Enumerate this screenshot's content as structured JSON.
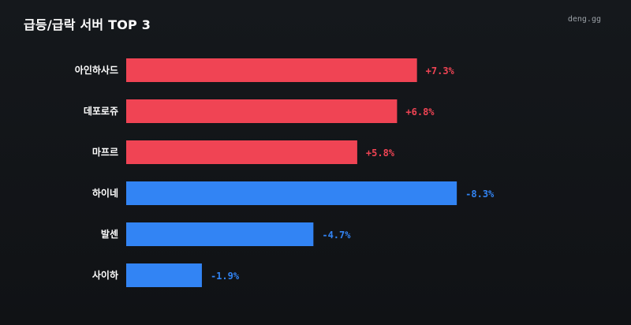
{
  "header": {
    "title": "급등/급락 서버 TOP 3",
    "brand": "deng.gg"
  },
  "colors": {
    "up": "#f04454",
    "down": "#3284f4",
    "background": "#121418"
  },
  "chart_data": {
    "type": "bar",
    "orientation": "horizontal",
    "title": "급등/급락 서버 TOP 3",
    "grid": false,
    "categories": [
      "아인하사드",
      "데포로쥬",
      "마프르",
      "하이네",
      "발센",
      "사이하"
    ],
    "values": [
      7.3,
      6.8,
      5.8,
      -8.3,
      -4.7,
      -1.9
    ],
    "value_labels": [
      "+7.3%",
      "+6.8%",
      "+5.8%",
      "-8.3%",
      "-4.7%",
      "-1.9%"
    ],
    "groups": [
      "up",
      "up",
      "up",
      "down",
      "down",
      "down"
    ]
  }
}
